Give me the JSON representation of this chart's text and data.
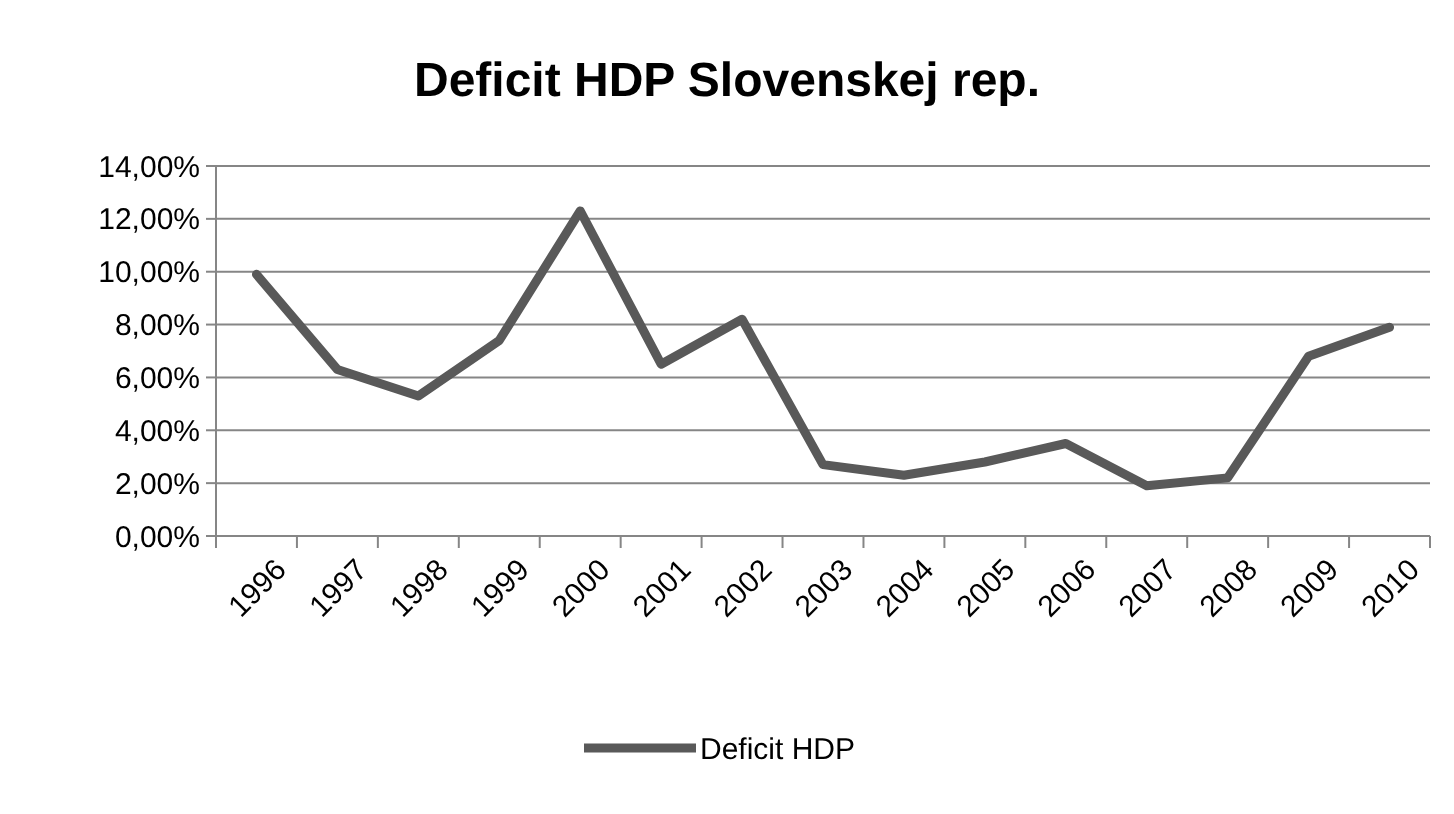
{
  "chart_data": {
    "type": "line",
    "title": "Deficit HDP Slovenskej rep.",
    "categories": [
      "1996",
      "1997",
      "1998",
      "1999",
      "2000",
      "2001",
      "2002",
      "2003",
      "2004",
      "2005",
      "2006",
      "2007",
      "2008",
      "2009",
      "2010"
    ],
    "series": [
      {
        "name": "Deficit HDP",
        "color": "#595959",
        "values": [
          9.9,
          6.3,
          5.3,
          7.4,
          12.3,
          6.5,
          8.2,
          2.7,
          2.3,
          2.8,
          3.5,
          1.9,
          2.2,
          6.8,
          7.9
        ]
      }
    ],
    "ylim": [
      0,
      14
    ],
    "yticks": [
      {
        "value": 0,
        "label": "0,00%"
      },
      {
        "value": 2,
        "label": "2,00%"
      },
      {
        "value": 4,
        "label": "4,00%"
      },
      {
        "value": 6,
        "label": "6,00%"
      },
      {
        "value": 8,
        "label": "8,00%"
      },
      {
        "value": 10,
        "label": "10,00%"
      },
      {
        "value": 12,
        "label": "12,00%"
      },
      {
        "value": 14,
        "label": "14,00%"
      }
    ],
    "grid": "y",
    "legend": "bottom",
    "marker": "none",
    "line_style": "solid"
  }
}
